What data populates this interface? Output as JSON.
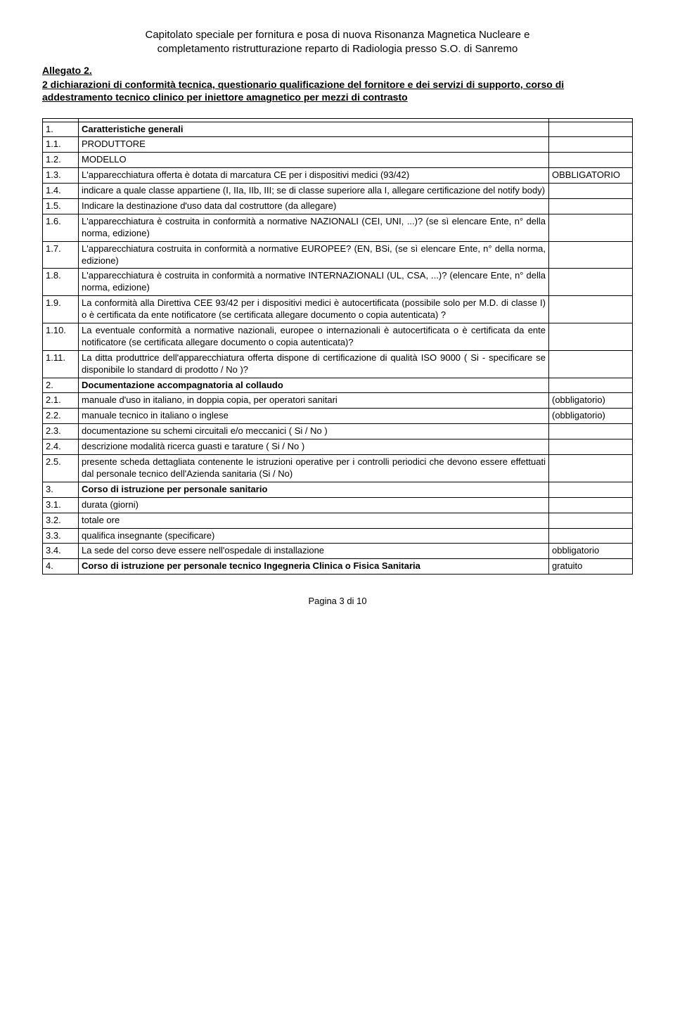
{
  "header": {
    "line1": "Capitolato speciale per fornitura e posa di nuova Risonanza Magnetica Nucleare e",
    "line2": "completamento ristrutturazione reparto di Radiologia presso S.O. di Sanremo"
  },
  "allegato": "Allegato 2.",
  "subtitle": "2 dichiarazioni di conformità tecnica, questionario qualificazione del fornitore e dei servizi di supporto, corso di addestramento tecnico  clinico per iniettore amagnetico per mezzi di contrasto",
  "rows": [
    {
      "num": "",
      "text": "",
      "note": "",
      "bold": false
    },
    {
      "num": "1.",
      "text": "Caratteristiche  generali",
      "note": "",
      "bold": true
    },
    {
      "num": "1.1.",
      "text": "PRODUTTORE",
      "note": "",
      "bold": false
    },
    {
      "num": "1.2.",
      "text": "MODELLO",
      "note": "",
      "bold": false
    },
    {
      "num": "1.3.",
      "text": "L'apparecchiatura offerta è dotata di marcatura CE per i dispositivi medici (93/42)",
      "note": "OBBLIGATORIO",
      "bold": false
    },
    {
      "num": "1.4.",
      "text": "indicare a quale classe appartiene (I, IIa, IIb, III; se di classe superiore alla I, allegare certificazione del notify body)",
      "note": "",
      "bold": false
    },
    {
      "num": "1.5.",
      "text": "Indicare la destinazione d'uso data dal costruttore (da allegare)",
      "note": "",
      "bold": false
    },
    {
      "num": "1.6.",
      "text": "L'apparecchiatura è costruita in conformità a normative NAZIONALI (CEI, UNI, ...)?  (se sì elencare Ente, n° della norma, edizione)",
      "note": "",
      "bold": false
    },
    {
      "num": "1.7.",
      "text": "L'apparecchiatura costruita in conformità a normative EUROPEE? (EN, BSi,  (se sì elencare Ente, n° della norma, edizione)",
      "note": "",
      "bold": false
    },
    {
      "num": "1.8.",
      "text": "L'apparecchiatura è costruita in conformità a normative INTERNAZIONALI (UL, CSA, ...)?  (elencare Ente, n° della norma, edizione)",
      "note": "",
      "bold": false
    },
    {
      "num": "1.9.",
      "text": "La conformità alla Direttiva CEE 93/42 per i dispositivi medici è autocertificata (possibile solo per M.D. di classe I) o è certificata da ente notificatore (se certificata allegare documento o copia autenticata) ?",
      "note": "",
      "bold": false
    },
    {
      "num": "1.10.",
      "text": "La eventuale conformità a normative nazionali, europee o internazionali è autocertificata o è certificata da ente notificatore (se certificata allegare documento o copia autenticata)?",
      "note": "",
      "bold": false
    },
    {
      "num": "1.11.",
      "text": "La ditta produttrice dell'apparecchiatura offerta dispone di certificazione di qualità ISO 9000  ( Si - specificare se disponibile lo standard di prodotto / No )?",
      "note": "",
      "bold": false
    },
    {
      "num": "2.",
      "text": "Documentazione accompagnatoria al collaudo",
      "note": "",
      "bold": true
    },
    {
      "num": "2.1.",
      "text": "manuale d'uso in italiano, in doppia copia, per operatori sanitari",
      "note": "(obbligatorio)",
      "bold": false
    },
    {
      "num": "2.2.",
      "text": "manuale tecnico in italiano o inglese",
      "note": "(obbligatorio)",
      "bold": false
    },
    {
      "num": "2.3.",
      "text": "documentazione su schemi circuitali e/o meccanici  ( Si / No )",
      "note": "",
      "bold": false
    },
    {
      "num": "2.4.",
      "text": "descrizione modalità ricerca guasti e tarature ( Si / No )",
      "note": "",
      "bold": false
    },
    {
      "num": "2.5.",
      "text": "presente scheda dettagliata contenente le istruzioni operative per i controlli periodici che devono essere effettuati dal personale tecnico dell'Azienda sanitaria (Si / No)",
      "note": "",
      "bold": false
    },
    {
      "num": "3.",
      "text": "Corso di istruzione per personale sanitario",
      "note": "",
      "bold": true
    },
    {
      "num": "3.1.",
      "text": "durata (giorni)",
      "note": "",
      "bold": false
    },
    {
      "num": "3.2.",
      "text": "totale ore",
      "note": "",
      "bold": false
    },
    {
      "num": "3.3.",
      "text": "qualifica insegnante (specificare)",
      "note": "",
      "bold": false
    },
    {
      "num": "3.4.",
      "text": "La sede del corso deve essere nell'ospedale di installazione",
      "note": "obbligatorio",
      "bold": false
    },
    {
      "num": "4.",
      "text": "Corso di istruzione per personale tecnico Ingegneria Clinica o Fisica Sanitaria",
      "note": "gratuito",
      "bold": true
    }
  ],
  "footer": "Pagina 3 di 10"
}
